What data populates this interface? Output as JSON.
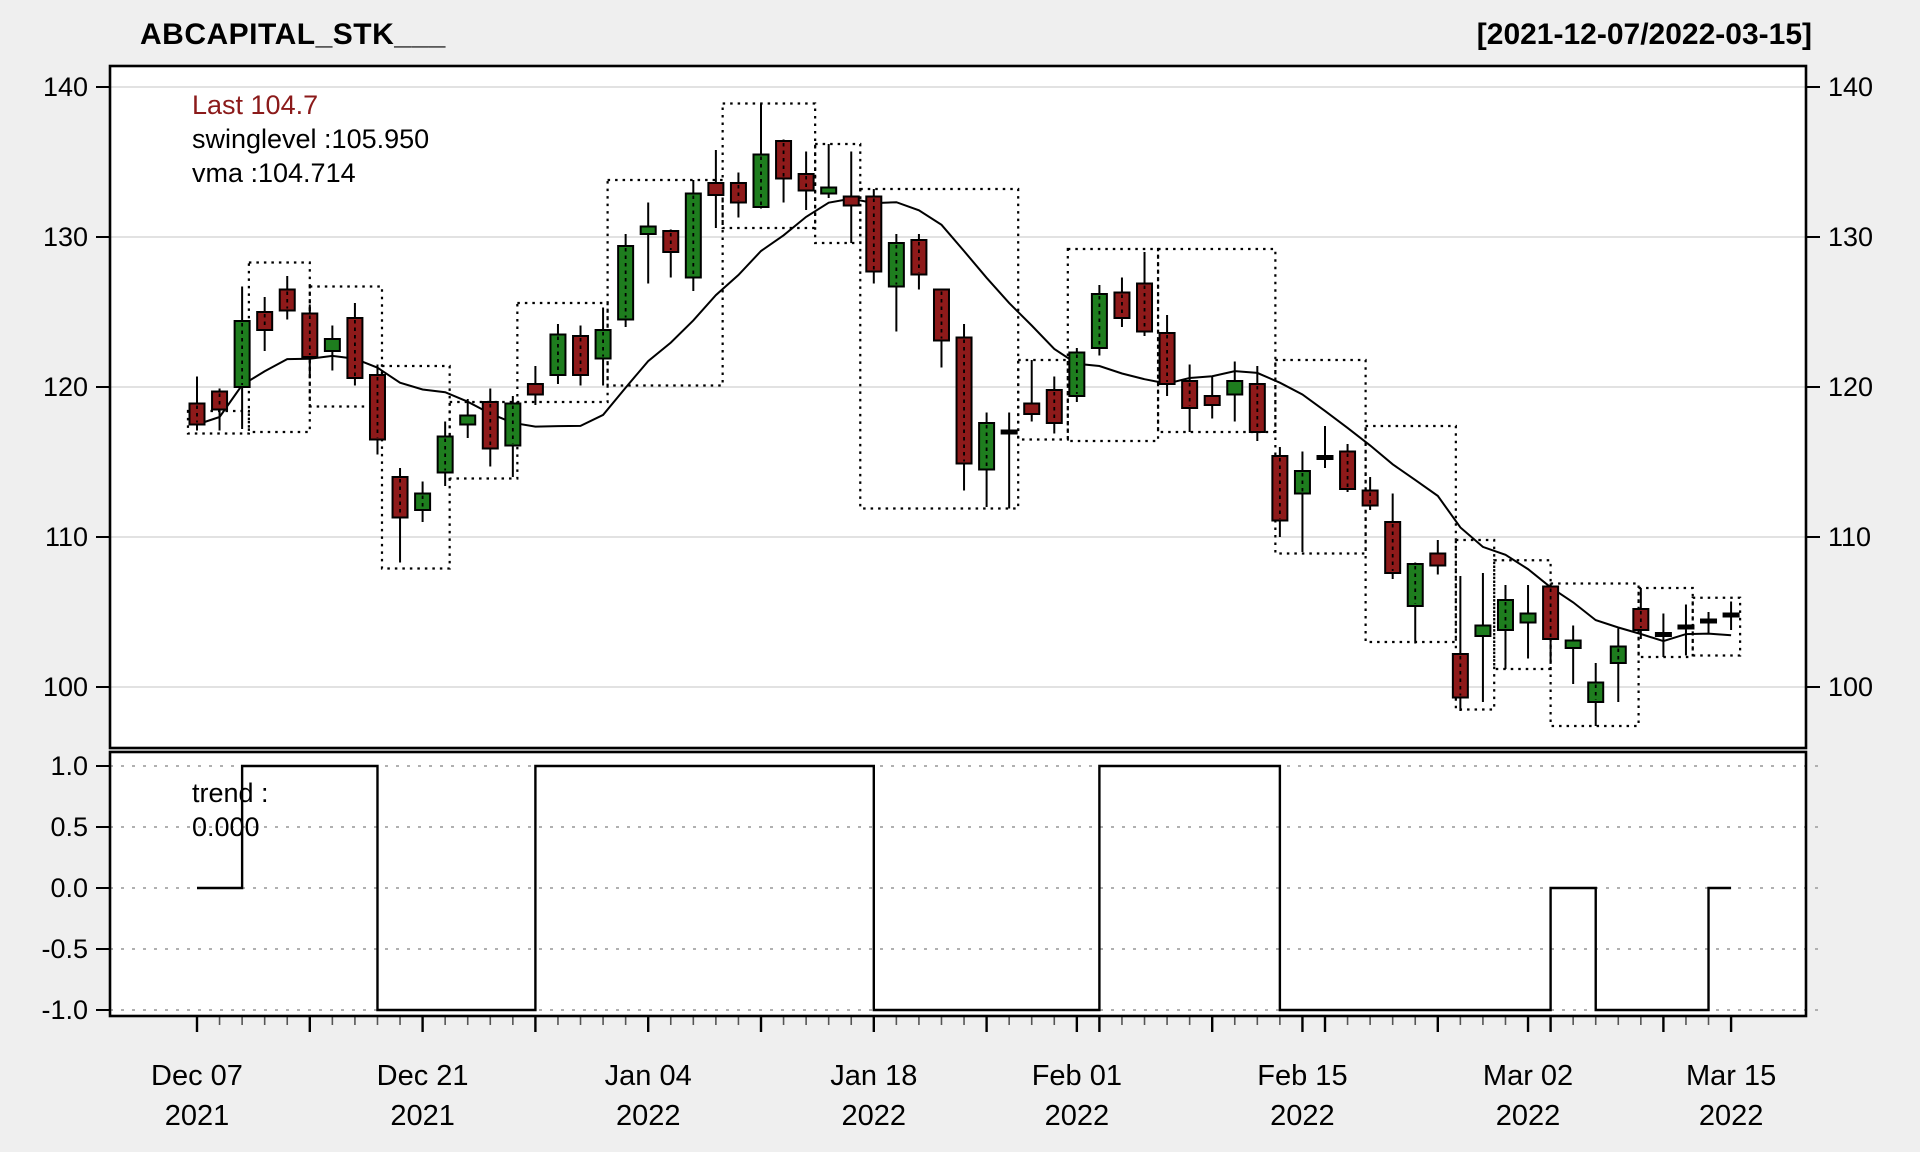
{
  "header": {
    "title": "ABCAPITAL_STK___",
    "range": "[2021-12-07/2022-03-15]"
  },
  "legend": {
    "last_label": "Last 104.7",
    "swinglevel_label": "swinglevel :105.950",
    "vma_label": "vma :104.714"
  },
  "trend_legend": {
    "name_label": "trend :",
    "value_label": "0.000"
  },
  "colors": {
    "up": "#1e7d1e",
    "down": "#8e1a1a",
    "last_text": "#8b1a1a",
    "line": "#000000",
    "grid_main": "#d9d9d9",
    "grid_trend": "#b0b0b0",
    "panel_bg": "#ffffff",
    "outer_bg": "#efefef"
  },
  "chart_data": {
    "type": "candlestick",
    "title": "ABCAPITAL_STK___",
    "ylabel": "",
    "main_axis": {
      "ticks": [
        140,
        130,
        120,
        110,
        100
      ],
      "ylim": [
        95.9,
        141.4
      ],
      "grid": "solid"
    },
    "trend_axis": {
      "ticks": [
        "1.0",
        "0.5",
        "0.0",
        "-0.5",
        "-1.0"
      ],
      "ylim": [
        -1.2,
        1.15
      ],
      "grid": "dotted"
    },
    "x_ticks": [
      {
        "i": 0,
        "line1": "Dec 07",
        "line2": "2021"
      },
      {
        "i": 10,
        "line1": "Dec 21",
        "line2": "2021"
      },
      {
        "i": 20,
        "line1": "Jan 04",
        "line2": "2022"
      },
      {
        "i": 30,
        "line1": "Jan 18",
        "line2": "2022"
      },
      {
        "i": 39,
        "line1": "Feb 01",
        "line2": "2022"
      },
      {
        "i": 49,
        "line1": "Feb 15",
        "line2": "2022"
      },
      {
        "i": 59,
        "line1": "Mar 02",
        "line2": "2022"
      },
      {
        "i": 68,
        "line1": "Mar 15",
        "line2": "2022"
      }
    ],
    "candles": [
      [
        "2021-12-07",
        118.9,
        120.7,
        117.1,
        117.5
      ],
      [
        "2021-12-08",
        119.7,
        119.9,
        117.1,
        118.5
      ],
      [
        "2021-12-09",
        120.0,
        126.7,
        117.2,
        124.4
      ],
      [
        "2021-12-10",
        125.0,
        126.0,
        122.4,
        123.8
      ],
      [
        "2021-12-13",
        126.5,
        127.4,
        124.5,
        125.1
      ],
      [
        "2021-12-14",
        124.9,
        125.5,
        120.6,
        122.0
      ],
      [
        "2021-12-15",
        122.4,
        124.1,
        121.1,
        123.2
      ],
      [
        "2021-12-16",
        124.6,
        125.6,
        120.1,
        120.6
      ],
      [
        "2021-12-17",
        120.8,
        121.5,
        115.5,
        116.5
      ],
      [
        "2021-12-20",
        114.0,
        114.6,
        108.3,
        111.3
      ],
      [
        "2021-12-21",
        111.8,
        113.7,
        111.0,
        112.9
      ],
      [
        "2021-12-22",
        114.3,
        117.7,
        113.4,
        116.7
      ],
      [
        "2021-12-23",
        117.5,
        119.2,
        116.6,
        118.1
      ],
      [
        "2021-12-24",
        119.0,
        119.9,
        114.7,
        115.9
      ],
      [
        "2021-12-27",
        116.1,
        119.4,
        114.0,
        118.9
      ],
      [
        "2021-12-28",
        120.2,
        121.4,
        118.8,
        119.5
      ],
      [
        "2021-12-29",
        120.8,
        124.2,
        120.2,
        123.5
      ],
      [
        "2021-12-30",
        123.4,
        124.1,
        120.1,
        120.8
      ],
      [
        "2021-12-31",
        121.9,
        125.3,
        120.1,
        123.8
      ],
      [
        "2022-01-03",
        124.5,
        130.2,
        124.0,
        129.4
      ],
      [
        "2022-01-04",
        130.2,
        132.3,
        126.9,
        130.7
      ],
      [
        "2022-01-05",
        130.4,
        130.5,
        127.3,
        129.0
      ],
      [
        "2022-01-06",
        127.3,
        133.8,
        126.4,
        132.9
      ],
      [
        "2022-01-07",
        133.6,
        135.8,
        130.6,
        132.8
      ],
      [
        "2022-01-10",
        133.6,
        134.3,
        131.3,
        132.3
      ],
      [
        "2022-01-11",
        132.0,
        138.9,
        131.9,
        135.5
      ],
      [
        "2022-01-12",
        136.4,
        136.5,
        132.3,
        133.9
      ],
      [
        "2022-01-13",
        134.2,
        135.7,
        131.8,
        133.1
      ],
      [
        "2022-01-14",
        132.9,
        136.2,
        132.6,
        133.3
      ],
      [
        "2022-01-17",
        132.7,
        135.7,
        129.6,
        132.1
      ],
      [
        "2022-01-18",
        132.7,
        133.2,
        126.9,
        127.7
      ],
      [
        "2022-01-19",
        126.7,
        130.2,
        123.7,
        129.6
      ],
      [
        "2022-01-20",
        129.8,
        130.2,
        126.5,
        127.5
      ],
      [
        "2022-01-21",
        126.5,
        126.5,
        121.3,
        123.1
      ],
      [
        "2022-01-24",
        123.3,
        124.2,
        113.1,
        114.9
      ],
      [
        "2022-01-25",
        114.5,
        118.3,
        112.0,
        117.6
      ],
      [
        "2022-01-27",
        117.0,
        118.3,
        111.9,
        117.0
      ],
      [
        "2022-01-28",
        118.9,
        121.8,
        117.7,
        118.2
      ],
      [
        "2022-01-31",
        119.8,
        120.7,
        116.9,
        117.6
      ],
      [
        "2022-02-01",
        119.4,
        122.6,
        119.0,
        122.3
      ],
      [
        "2022-02-02",
        122.6,
        126.8,
        122.1,
        126.2
      ],
      [
        "2022-02-03",
        126.3,
        127.3,
        124.0,
        124.6
      ],
      [
        "2022-02-04",
        126.9,
        129.0,
        123.4,
        123.7
      ],
      [
        "2022-02-07",
        123.6,
        124.8,
        119.4,
        120.2
      ],
      [
        "2022-02-08",
        120.4,
        121.5,
        117.0,
        118.6
      ],
      [
        "2022-02-09",
        119.4,
        120.7,
        117.9,
        118.8
      ],
      [
        "2022-02-10",
        119.5,
        121.7,
        117.7,
        120.4
      ],
      [
        "2022-02-11",
        120.2,
        121.4,
        116.4,
        117.0
      ],
      [
        "2022-02-14",
        115.4,
        116.0,
        110.0,
        111.1
      ],
      [
        "2022-02-15",
        112.9,
        115.7,
        109.0,
        114.4
      ],
      [
        "2022-02-16",
        115.2,
        117.4,
        114.6,
        115.3
      ],
      [
        "2022-02-17",
        115.7,
        116.2,
        113.0,
        113.2
      ],
      [
        "2022-02-18",
        113.1,
        114.0,
        111.8,
        112.1
      ],
      [
        "2022-02-21",
        111.0,
        112.9,
        107.2,
        107.6
      ],
      [
        "2022-02-22",
        105.4,
        108.3,
        102.9,
        108.2
      ],
      [
        "2022-02-23",
        108.9,
        109.8,
        107.5,
        108.1
      ],
      [
        "2022-02-24",
        102.2,
        107.4,
        98.4,
        99.3
      ],
      [
        "2022-02-25",
        103.4,
        107.6,
        99.0,
        104.1
      ],
      [
        "2022-02-28",
        103.8,
        106.8,
        101.2,
        105.8
      ],
      [
        "2022-03-02",
        104.3,
        106.8,
        101.9,
        104.9
      ],
      [
        "2022-03-03",
        106.7,
        106.9,
        101.6,
        103.2
      ],
      [
        "2022-03-04",
        102.6,
        104.1,
        100.2,
        103.1
      ],
      [
        "2022-03-07",
        99.0,
        101.6,
        97.4,
        100.3
      ],
      [
        "2022-03-08",
        101.6,
        103.9,
        99.0,
        102.7
      ],
      [
        "2022-03-09",
        105.2,
        106.6,
        103.2,
        103.8
      ],
      [
        "2022-03-10",
        103.5,
        104.9,
        102.0,
        103.4
      ],
      [
        "2022-03-11",
        104.0,
        105.5,
        102.1,
        104.0
      ],
      [
        "2022-03-14",
        104.4,
        105.0,
        103.6,
        104.4
      ],
      [
        "2022-03-15",
        104.8,
        105.7,
        103.8,
        104.7
      ]
    ],
    "vma_window": 10,
    "vma_last": 104.714,
    "swinglevel_last": 105.95,
    "trend_last": 0.0,
    "trend": [
      0,
      0,
      1,
      1,
      1,
      1,
      1,
      1,
      -1,
      -1,
      -1,
      -1,
      -1,
      -1,
      -1,
      1,
      1,
      1,
      1,
      1,
      1,
      1,
      1,
      1,
      1,
      1,
      1,
      1,
      1,
      1,
      -1,
      -1,
      -1,
      -1,
      -1,
      -1,
      -1,
      -1,
      -1,
      -1,
      1,
      1,
      1,
      1,
      1,
      1,
      1,
      1,
      -1,
      -1,
      -1,
      -1,
      -1,
      -1,
      -1,
      -1,
      -1,
      -1,
      -1,
      -1,
      0,
      0,
      -1,
      -1,
      -1,
      -1,
      -1,
      0,
      0
    ],
    "swing_boxes": [
      {
        "i0": -0.4,
        "i1": 2.3,
        "top": 118.4,
        "bottom": 116.9
      },
      {
        "i0": 2.3,
        "i1": 5.0,
        "top": 128.3,
        "bottom": 117.0
      },
      {
        "i0": 5.0,
        "i1": 8.2,
        "top": 126.7,
        "bottom": 118.7
      },
      {
        "i0": 8.2,
        "i1": 11.2,
        "top": 121.4,
        "bottom": 107.9
      },
      {
        "i0": 11.2,
        "i1": 14.2,
        "top": 119.0,
        "bottom": 113.9
      },
      {
        "i0": 14.2,
        "i1": 18.2,
        "top": 125.6,
        "bottom": 119.0
      },
      {
        "i0": 18.2,
        "i1": 23.3,
        "top": 133.8,
        "bottom": 120.1
      },
      {
        "i0": 23.3,
        "i1": 27.4,
        "top": 138.9,
        "bottom": 130.6
      },
      {
        "i0": 27.4,
        "i1": 29.4,
        "top": 136.2,
        "bottom": 129.6
      },
      {
        "i0": 29.4,
        "i1": 36.4,
        "top": 133.2,
        "bottom": 111.9
      },
      {
        "i0": 36.4,
        "i1": 38.6,
        "top": 121.8,
        "bottom": 116.5
      },
      {
        "i0": 38.6,
        "i1": 42.6,
        "top": 129.2,
        "bottom": 116.4
      },
      {
        "i0": 42.6,
        "i1": 47.8,
        "top": 129.2,
        "bottom": 117.0
      },
      {
        "i0": 47.8,
        "i1": 51.8,
        "top": 121.8,
        "bottom": 108.9
      },
      {
        "i0": 51.8,
        "i1": 55.8,
        "top": 117.4,
        "bottom": 103.0
      },
      {
        "i0": 55.8,
        "i1": 57.5,
        "top": 109.8,
        "bottom": 98.5
      },
      {
        "i0": 57.5,
        "i1": 60.0,
        "top": 108.45,
        "bottom": 101.2
      },
      {
        "i0": 60.0,
        "i1": 63.9,
        "top": 106.9,
        "bottom": 97.4
      },
      {
        "i0": 63.9,
        "i1": 66.3,
        "top": 106.6,
        "bottom": 102.0
      },
      {
        "i0": 66.3,
        "i1": 68.4,
        "top": 105.95,
        "bottom": 102.1
      }
    ]
  }
}
